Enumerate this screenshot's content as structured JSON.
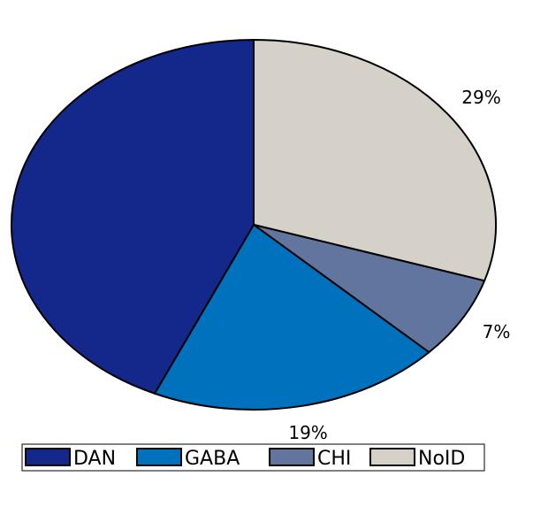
{
  "chart_data": {
    "type": "pie",
    "slices": [
      {
        "label": "NoID",
        "value": 29,
        "display": "29%",
        "color": "#d5d1c9"
      },
      {
        "label": "CHI",
        "value": 7,
        "display": "7%",
        "color": "#62759e"
      },
      {
        "label": "GABA",
        "value": 19,
        "display": "19%",
        "color": "#0071bc"
      },
      {
        "label": "DAN",
        "value": 42,
        "display": "42%",
        "color": "#14278a"
      }
    ],
    "legend": {
      "placement": "bottom",
      "order": [
        "DAN",
        "GABA",
        "CHI",
        "NoID"
      ]
    },
    "start": "top",
    "direction": "clockwise"
  }
}
